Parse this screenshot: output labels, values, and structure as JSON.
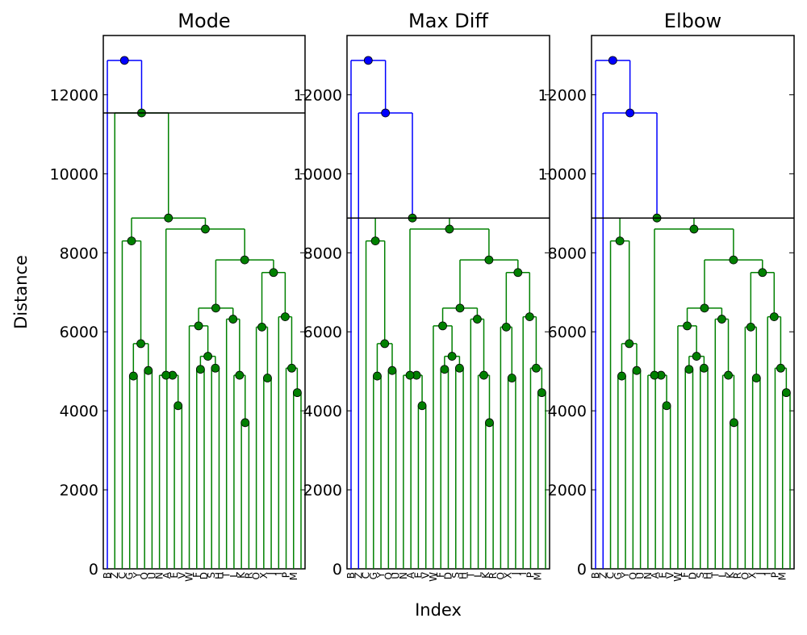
{
  "figure": {
    "xlabel": "Index",
    "ylabel": "Distance"
  },
  "chart_data": [
    {
      "type": "dendrogram",
      "title": "Mode",
      "ylim": [
        0,
        13500
      ],
      "yticks": [
        0,
        2000,
        4000,
        6000,
        8000,
        10000,
        12000
      ],
      "leaves": [
        "B",
        "Z",
        "C",
        "G",
        "Y",
        "Q",
        "U",
        "N",
        "A",
        "E",
        "V",
        "W",
        "F",
        "D",
        "S",
        "H",
        "T",
        "L",
        "K",
        "R",
        "O",
        "X",
        "J",
        "I",
        "P",
        "M"
      ],
      "threshold": 11540,
      "colors": {
        "above": "#0000ff",
        "below": "#008000"
      },
      "merges": [
        {
          "height": 12870,
          "color": "#0000ff"
        },
        {
          "height": 11540,
          "color": "#008000"
        },
        {
          "height": 8880,
          "color": "#008000"
        }
      ]
    },
    {
      "type": "dendrogram",
      "title": "Max Diff",
      "ylim": [
        0,
        13500
      ],
      "yticks": [
        0,
        2000,
        4000,
        6000,
        8000,
        10000,
        12000
      ],
      "leaves": [
        "B",
        "Z",
        "C",
        "G",
        "Y",
        "Q",
        "U",
        "N",
        "A",
        "E",
        "V",
        "W",
        "F",
        "D",
        "S",
        "H",
        "T",
        "L",
        "K",
        "R",
        "O",
        "X",
        "J",
        "I",
        "P",
        "M"
      ],
      "threshold": 8880,
      "colors": {
        "above": "#0000ff",
        "below": "#008000"
      },
      "merges": [
        {
          "height": 12870,
          "color": "#0000ff"
        },
        {
          "height": 11540,
          "color": "#0000ff"
        },
        {
          "height": 8880,
          "color": "#008000"
        }
      ]
    },
    {
      "type": "dendrogram",
      "title": "Elbow",
      "ylim": [
        0,
        13500
      ],
      "yticks": [
        0,
        2000,
        4000,
        6000,
        8000,
        10000,
        12000
      ],
      "leaves": [
        "B",
        "Z",
        "C",
        "G",
        "Y",
        "Q",
        "U",
        "N",
        "A",
        "E",
        "V",
        "W",
        "F",
        "D",
        "S",
        "H",
        "T",
        "L",
        "K",
        "R",
        "O",
        "X",
        "J",
        "I",
        "P",
        "M"
      ],
      "threshold": 8880,
      "colors": {
        "above": "#0000ff",
        "below": "#008000"
      },
      "merges": [
        {
          "height": 12870,
          "color": "#0000ff"
        },
        {
          "height": 11540,
          "color": "#0000ff"
        },
        {
          "height": 8880,
          "color": "#008000"
        }
      ]
    }
  ],
  "tree_heights": {
    "top": 12870,
    "second": 11540,
    "third": 8880,
    "clusterA": 8300,
    "clusterA_sub": 5700,
    "clusterA_leafpair": 4880,
    "clusterA_single": 5020,
    "clusterB": 8600,
    "clusterB_left": 4900,
    "clusterB_left_pair": 4130,
    "clusterB_mid": 7820,
    "clusterB_mid_a": 6600,
    "clusterB_mid_b": 6150,
    "clusterB_mid_c": 5380,
    "clusterB_mid_d": 5050,
    "clusterB_mid_e": 5080,
    "clusterB_mid_f": 6320,
    "clusterB_mid_g": 4900,
    "clusterB_mid_h": 3700,
    "clusterB_right": 7500,
    "clusterB_right_a": 6120,
    "clusterB_right_b": 4830,
    "clusterB_right_c": 6380,
    "clusterB_right_d": 5080,
    "clusterB_right_e": 4460
  }
}
